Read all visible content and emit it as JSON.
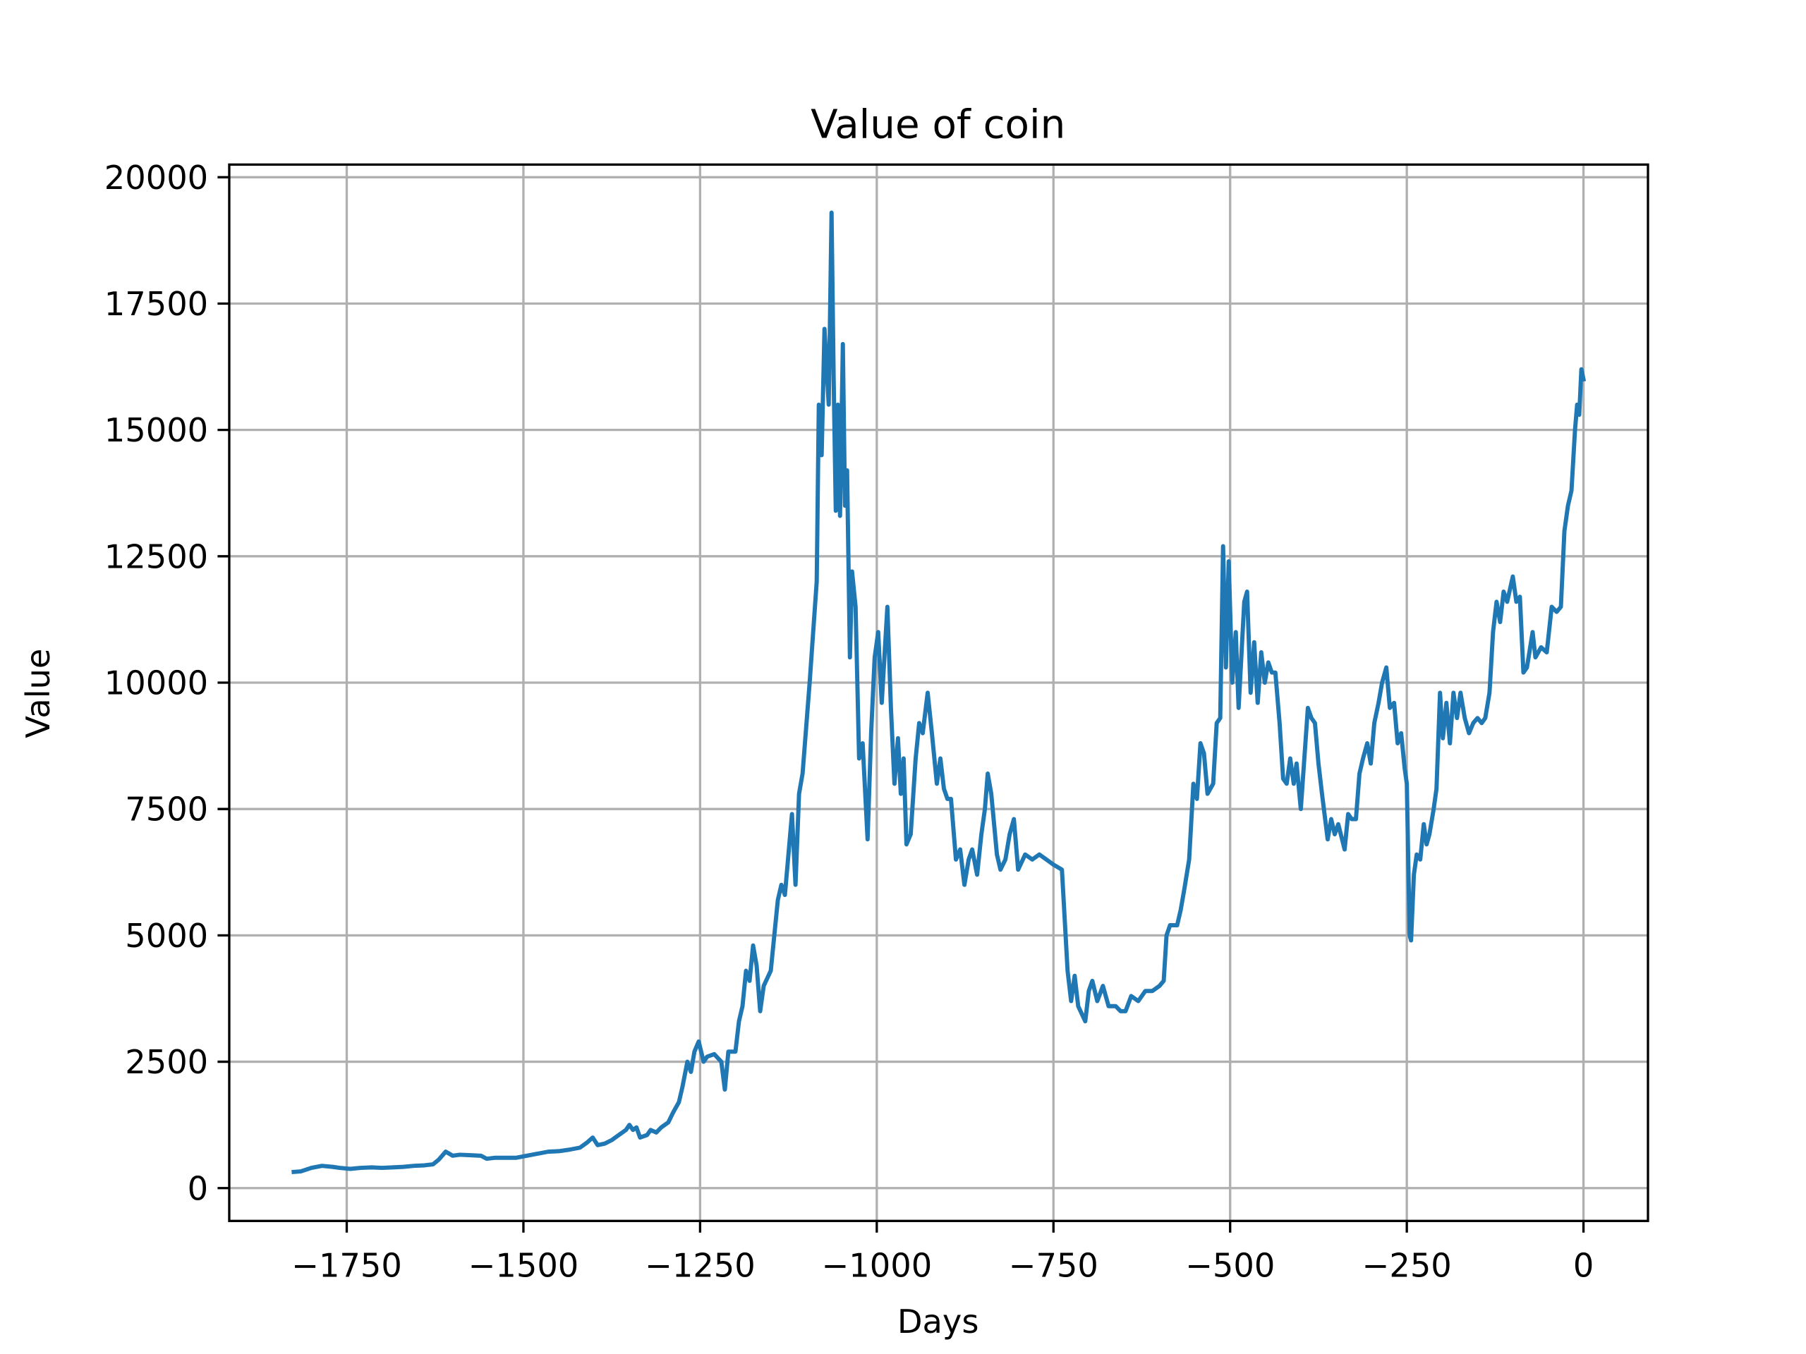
{
  "chart_data": {
    "type": "line",
    "title": "Value of coin",
    "xlabel": "Days",
    "ylabel": "Value",
    "color": "#1f77b4",
    "grid": true,
    "xlim": [
      -1916.25,
      91.25
    ],
    "ylim": [
      -650,
      20250
    ],
    "xticks": [
      {
        "value": -1750,
        "label": "−1750"
      },
      {
        "value": -1500,
        "label": "−1500"
      },
      {
        "value": -1250,
        "label": "−1250"
      },
      {
        "value": -1000,
        "label": "−1000"
      },
      {
        "value": -750,
        "label": "−750"
      },
      {
        "value": -500,
        "label": "−500"
      },
      {
        "value": -250,
        "label": "−250"
      },
      0
    ],
    "yticks": [
      0,
      2500,
      5000,
      7500,
      10000,
      12500,
      15000,
      17500,
      20000
    ],
    "x": [
      -1825,
      -1815,
      -1800,
      -1785,
      -1770,
      -1760,
      -1745,
      -1730,
      -1715,
      -1700,
      -1685,
      -1670,
      -1655,
      -1640,
      -1628,
      -1620,
      -1610,
      -1600,
      -1590,
      -1575,
      -1560,
      -1552,
      -1540,
      -1525,
      -1510,
      -1495,
      -1480,
      -1465,
      -1450,
      -1435,
      -1420,
      -1410,
      -1402,
      -1395,
      -1385,
      -1375,
      -1365,
      -1355,
      -1350,
      -1345,
      -1340,
      -1335,
      -1325,
      -1320,
      -1312,
      -1305,
      -1295,
      -1288,
      -1280,
      -1275,
      -1268,
      -1263,
      -1258,
      -1252,
      -1245,
      -1240,
      -1230,
      -1220,
      -1215,
      -1210,
      -1200,
      -1195,
      -1190,
      -1185,
      -1180,
      -1175,
      -1170,
      -1165,
      -1160,
      -1150,
      -1145,
      -1140,
      -1135,
      -1130,
      -1120,
      -1115,
      -1110,
      -1105,
      -1095,
      -1090,
      -1085,
      -1082,
      -1078,
      -1074,
      -1068,
      -1064,
      -1061,
      -1058,
      -1055,
      -1052,
      -1048,
      -1045,
      -1042,
      -1038,
      -1035,
      -1030,
      -1025,
      -1020,
      -1013,
      -1008,
      -1003,
      -998,
      -993,
      -985,
      -980,
      -975,
      -970,
      -966,
      -962,
      -958,
      -952,
      -945,
      -940,
      -935,
      -928,
      -922,
      -915,
      -910,
      -905,
      -900,
      -895,
      -888,
      -882,
      -876,
      -870,
      -865,
      -858,
      -852,
      -847,
      -843,
      -838,
      -830,
      -825,
      -818,
      -812,
      -806,
      -800,
      -790,
      -780,
      -770,
      -760,
      -750,
      -738,
      -730,
      -725,
      -720,
      -715,
      -705,
      -700,
      -695,
      -688,
      -680,
      -672,
      -662,
      -655,
      -648,
      -640,
      -630,
      -620,
      -610,
      -600,
      -594,
      -590,
      -585,
      -575,
      -570,
      -565,
      -558,
      -552,
      -547,
      -542,
      -537,
      -532,
      -524,
      -519,
      -514,
      -510,
      -506,
      -502,
      -497,
      -492,
      -488,
      -480,
      -476,
      -471,
      -466,
      -461,
      -456,
      -451,
      -446,
      -441,
      -436,
      -430,
      -425,
      -420,
      -415,
      -410,
      -406,
      -400,
      -390,
      -385,
      -380,
      -375,
      -370,
      -362,
      -357,
      -352,
      -347,
      -338,
      -333,
      -328,
      -322,
      -317,
      -312,
      -306,
      -301,
      -296,
      -290,
      -285,
      -279,
      -274,
      -268,
      -263,
      -258,
      -253,
      -250,
      -246,
      -244,
      -240,
      -236,
      -231,
      -226,
      -222,
      -218,
      -212,
      -208,
      -203,
      -199,
      -194,
      -189,
      -184,
      -179,
      -174,
      -168,
      -162,
      -156,
      -150,
      -144,
      -139,
      -133,
      -128,
      -123,
      -118,
      -113,
      -108,
      -100,
      -95,
      -90,
      -85,
      -80,
      -72,
      -68,
      -60,
      -52,
      -45,
      -38,
      -32,
      -27,
      -22,
      -17,
      -12,
      -9,
      -6,
      -3,
      0
    ],
    "values": [
      320,
      330,
      400,
      440,
      420,
      400,
      380,
      400,
      410,
      400,
      410,
      420,
      440,
      450,
      470,
      560,
      720,
      640,
      660,
      650,
      640,
      580,
      600,
      600,
      600,
      640,
      680,
      720,
      730,
      760,
      800,
      900,
      1000,
      850,
      880,
      950,
      1050,
      1150,
      1250,
      1150,
      1200,
      1000,
      1050,
      1150,
      1100,
      1200,
      1300,
      1500,
      1700,
      2000,
      2500,
      2300,
      2700,
      2900,
      2500,
      2600,
      2650,
      2500,
      1950,
      2700,
      2700,
      3300,
      3600,
      4300,
      4100,
      4800,
      4400,
      3500,
      4000,
      4300,
      5000,
      5700,
      6000,
      5800,
      7400,
      6000,
      7800,
      8200,
      10000,
      11000,
      12000,
      15500,
      14500,
      17000,
      15500,
      19300,
      16000,
      13400,
      15500,
      13300,
      16700,
      13500,
      14200,
      10500,
      12200,
      11500,
      8500,
      8800,
      6900,
      9000,
      10500,
      11000,
      9600,
      11500,
      9500,
      8000,
      8900,
      7800,
      8500,
      6800,
      7000,
      8500,
      9200,
      9000,
      9800,
      9000,
      8000,
      8500,
      7900,
      7700,
      7700,
      6500,
      6700,
      6000,
      6500,
      6700,
      6200,
      7000,
      7500,
      8200,
      7800,
      6600,
      6300,
      6500,
      7000,
      7300,
      6300,
      6600,
      6500,
      6600,
      6500,
      6400,
      6300,
      4300,
      3700,
      4200,
      3600,
      3300,
      3900,
      4100,
      3700,
      4000,
      3600,
      3600,
      3500,
      3500,
      3800,
      3700,
      3900,
      3900,
      4000,
      4100,
      5000,
      5200,
      5200,
      5500,
      5900,
      6500,
      8000,
      7700,
      8800,
      8600,
      7800,
      8000,
      9200,
      9300,
      12700,
      10300,
      12400,
      10000,
      11000,
      9500,
      11600,
      11800,
      9800,
      10800,
      9600,
      10600,
      10000,
      10400,
      10200,
      10200,
      9200,
      8100,
      8000,
      8500,
      8000,
      8400,
      7500,
      9500,
      9300,
      9200,
      8400,
      7800,
      6900,
      7300,
      7000,
      7200,
      6700,
      7400,
      7300,
      7300,
      8200,
      8500,
      8800,
      8400,
      9200,
      9600,
      10000,
      10300,
      9500,
      9600,
      8800,
      9000,
      8300,
      8000,
      5000,
      4900,
      6200,
      6600,
      6500,
      7200,
      6800,
      7000,
      7500,
      7900,
      9800,
      8900,
      9600,
      8800,
      9800,
      9300,
      9800,
      9300,
      9000,
      9200,
      9300,
      9200,
      9300,
      9800,
      11000,
      11600,
      11200,
      11800,
      11600,
      12100,
      11600,
      11700,
      10200,
      10300,
      11000,
      10500,
      10700,
      10600,
      11500,
      11400,
      11500,
      13000,
      13500,
      13800,
      15000,
      15500,
      15300,
      16200,
      16000
    ]
  }
}
